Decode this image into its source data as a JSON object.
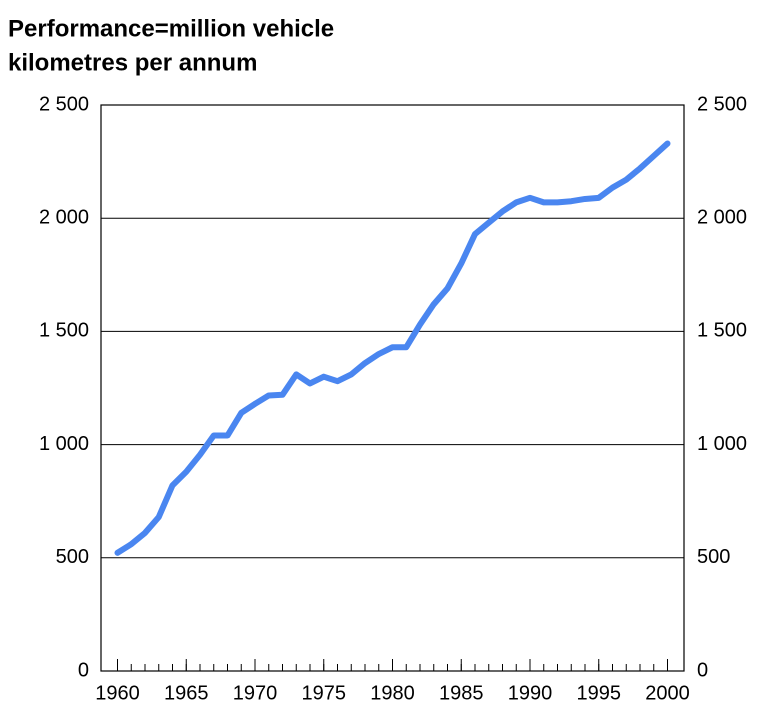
{
  "chart_data": {
    "type": "line",
    "title": [
      "Performance=million vehicle",
      "kilometres per annum"
    ],
    "x": [
      1960,
      1961,
      1962,
      1963,
      1964,
      1965,
      1966,
      1967,
      1968,
      1969,
      1970,
      1971,
      1972,
      1973,
      1974,
      1975,
      1976,
      1977,
      1978,
      1979,
      1980,
      1981,
      1982,
      1983,
      1984,
      1985,
      1986,
      1987,
      1988,
      1989,
      1990,
      1991,
      1992,
      1993,
      1994,
      1995,
      1996,
      1997,
      1998,
      1999,
      2000
    ],
    "series": [
      {
        "color": "#4a86f0",
        "values": [
          522,
          560,
          610,
          680,
          820,
          880,
          955,
          1040,
          1040,
          1140,
          1180,
          1217,
          1220,
          1310,
          1270,
          1300,
          1280,
          1310,
          1360,
          1400,
          1430,
          1430,
          1530,
          1620,
          1690,
          1800,
          1930,
          1980,
          2030,
          2070,
          2090,
          2070,
          2070,
          2075,
          2085,
          2090,
          2135,
          2170,
          2220,
          2275,
          2330
        ]
      }
    ],
    "xlim": [
      1958.8,
      2001.2
    ],
    "xticks": [
      1960,
      1965,
      1970,
      1975,
      1980,
      1985,
      1990,
      1995,
      2000
    ],
    "ylim": [
      0,
      2500
    ],
    "yticks": [
      0,
      500,
      {
        "value": 1000,
        "label": "1 000"
      },
      {
        "value": 1500,
        "label": "1 500"
      },
      {
        "value": 2000,
        "label": "2 000"
      },
      {
        "value": 2500,
        "label": "2 500"
      }
    ],
    "grid": true
  }
}
